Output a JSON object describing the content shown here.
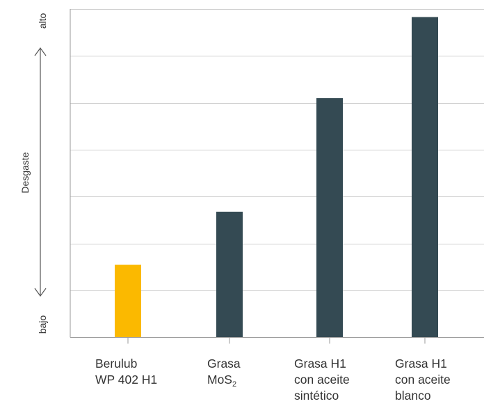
{
  "chart_data": {
    "type": "bar",
    "title": "",
    "xlabel": "",
    "ylabel": "Desgaste",
    "y_low_label": "bajo",
    "y_high_label": "alto",
    "ylim": [
      0,
      7
    ],
    "grid": true,
    "categories": [
      {
        "lines": [
          {
            "text": "Berulub"
          },
          {
            "text": "WP 402 H1"
          }
        ]
      },
      {
        "lines": [
          {
            "text": "Grasa"
          },
          {
            "text": "MoS",
            "sub": "2"
          }
        ]
      },
      {
        "lines": [
          {
            "text": "Grasa H1"
          },
          {
            "text": "con aceite"
          },
          {
            "text": "sintético"
          }
        ]
      },
      {
        "lines": [
          {
            "text": "Grasa H1"
          },
          {
            "text": "con aceite"
          },
          {
            "text": "blanco"
          }
        ]
      }
    ],
    "values": [
      1.55,
      2.68,
      5.1,
      6.83
    ],
    "colors": {
      "highlight": "#FBB900",
      "bar": "#344A53",
      "grid": "#D0D0D0",
      "axis": "#9A9A9A",
      "text": "#333333"
    },
    "highlight_index": 0
  }
}
